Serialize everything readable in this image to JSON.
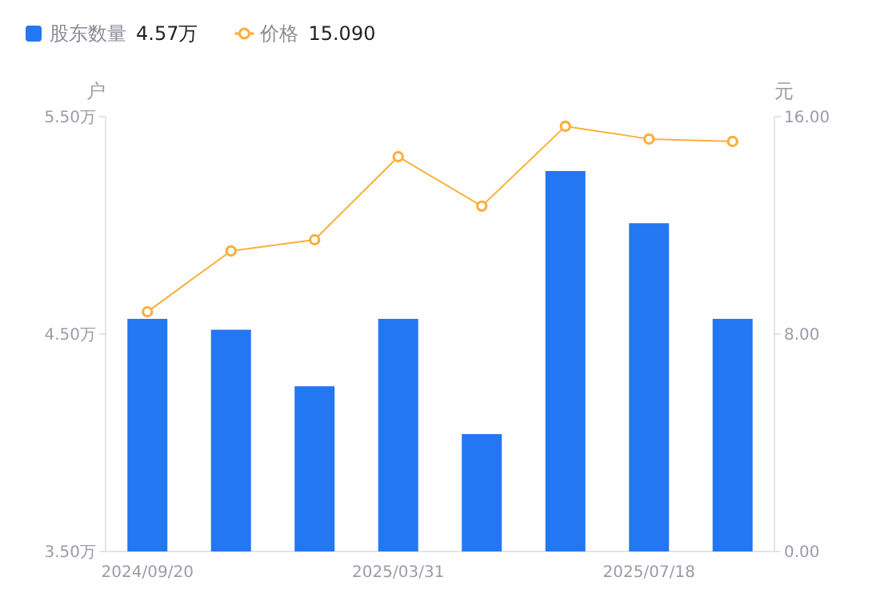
{
  "chart_data": {
    "type": "bar",
    "categories": [
      "2024/09/20",
      null,
      null,
      "2025/03/31",
      null,
      null,
      "2025/07/18",
      null
    ],
    "series": [
      {
        "name": "股东数量",
        "color": "#2477f2",
        "values": [
          4.57,
          4.52,
          4.26,
          4.57,
          4.04,
          5.25,
          5.01,
          4.57
        ]
      },
      {
        "name": "价格",
        "type": "line",
        "axis": "y2",
        "color": "#fbb03b",
        "marker": "circle",
        "values": [
          8.82,
          11.06,
          11.47,
          14.53,
          12.71,
          15.65,
          15.18,
          15.09
        ]
      }
    ],
    "ylabel": "户",
    "y2label": "元",
    "ylim": [
      3.5,
      5.5
    ],
    "yticks": [
      {
        "value": 3.5,
        "label": "3.50万"
      },
      {
        "value": 4.5,
        "label": "4.50万"
      },
      {
        "value": 5.5,
        "label": "5.50万"
      }
    ],
    "y2lim": [
      0,
      16
    ],
    "y2ticks": [
      {
        "value": 0,
        "label": "0.00"
      },
      {
        "value": 8,
        "label": "8.00"
      },
      {
        "value": 16,
        "label": "16.00"
      }
    ],
    "legend": "top left",
    "annotations": [
      "4.57万",
      "15.090"
    ]
  }
}
